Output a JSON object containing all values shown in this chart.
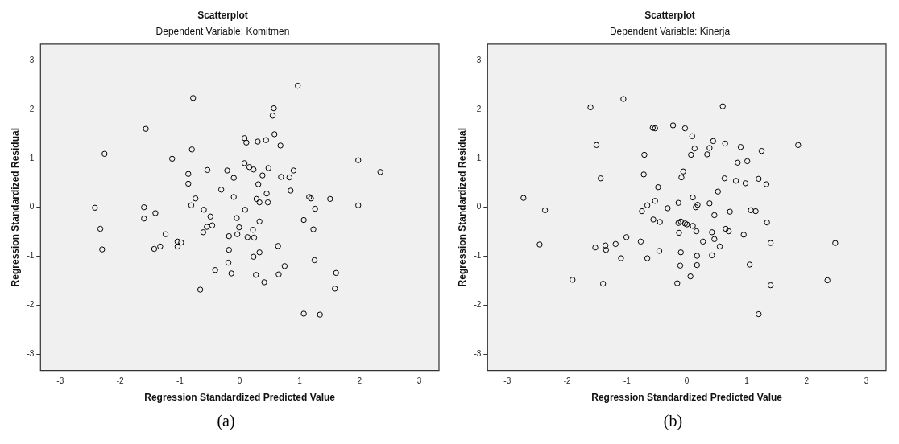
{
  "chart_data": [
    {
      "type": "scatter",
      "title": "Scatterplot",
      "subtitle": "Dependent Variable: Komitmen",
      "xlabel": "Regression Standardized Predicted Value",
      "ylabel": "Regression Standardized Residual",
      "annotations": [
        "(a)"
      ],
      "color": "#000000",
      "marker": "circle",
      "grid": false,
      "legend": false,
      "xlim": [
        -3.33,
        3.33
      ],
      "ylim": [
        -3.33,
        3.33
      ],
      "xticks": [
        -3,
        -2,
        -1,
        0,
        1,
        2,
        3
      ],
      "yticks": [
        -3,
        -2,
        -1,
        0,
        1,
        2,
        3
      ],
      "x": [
        0.97,
        -0.78,
        0.57,
        0.55,
        -1.57,
        0.58,
        0.08,
        0.11,
        0.3,
        0.44,
        0.68,
        -2.26,
        -0.8,
        -1.13,
        1.98,
        2.35,
        0.08,
        0.16,
        0.23,
        0.48,
        0.9,
        -0.54,
        -0.21,
        -0.86,
        -0.1,
        0.38,
        0.69,
        0.83,
        -0.86,
        0.31,
        -0.31,
        0.85,
        -0.74,
        -0.1,
        0.28,
        0.45,
        0.33,
        0.47,
        1.16,
        1.19,
        1.51,
        1.98,
        -2.42,
        -1.6,
        -0.81,
        0.09,
        1.26,
        -1.6,
        -1.41,
        -0.6,
        -0.49,
        -0.05,
        0.33,
        1.07,
        -2.33,
        -0.55,
        -0.46,
        -0.01,
        0.22,
        1.23,
        -1.24,
        -0.61,
        -0.04,
        -0.18,
        0.13,
        0.24,
        -1.04,
        -0.98,
        -1.04,
        -1.33,
        -1.43,
        -2.3,
        0.64,
        -0.18,
        0.33,
        0.23,
        -0.19,
        1.25,
        0.75,
        -0.41,
        -0.14,
        0.27,
        0.65,
        1.61,
        0.41,
        -0.66,
        1.59,
        1.07,
        1.34
      ],
      "values": [
        2.48,
        2.23,
        2.02,
        1.87,
        1.6,
        1.49,
        1.41,
        1.32,
        1.34,
        1.37,
        1.26,
        1.09,
        1.18,
        0.99,
        0.96,
        0.72,
        0.9,
        0.82,
        0.77,
        0.8,
        0.75,
        0.76,
        0.75,
        0.68,
        0.6,
        0.65,
        0.62,
        0.61,
        0.48,
        0.47,
        0.36,
        0.34,
        0.18,
        0.21,
        0.17,
        0.28,
        0.1,
        0.1,
        0.21,
        0.18,
        0.17,
        0.04,
        -0.01,
        0.0,
        0.04,
        -0.05,
        -0.03,
        -0.23,
        -0.12,
        -0.05,
        -0.19,
        -0.22,
        -0.29,
        -0.26,
        -0.44,
        -0.4,
        -0.37,
        -0.41,
        -0.46,
        -0.45,
        -0.55,
        -0.51,
        -0.55,
        -0.59,
        -0.61,
        -0.62,
        -0.7,
        -0.72,
        -0.8,
        -0.8,
        -0.85,
        -0.86,
        -0.79,
        -0.87,
        -0.92,
        -1.01,
        -1.13,
        -1.08,
        -1.2,
        -1.28,
        -1.35,
        -1.38,
        -1.37,
        -1.34,
        -1.53,
        -1.68,
        -1.66,
        -2.17,
        -2.19
      ]
    },
    {
      "type": "scatter",
      "title": "Scatterplot",
      "subtitle": "Dependent Variable: Kinerja",
      "xlabel": "Regression Standardized Predicted Value",
      "ylabel": "Regression Standardized Residual",
      "annotations": [
        "(b)"
      ],
      "color": "#000000",
      "marker": "circle",
      "grid": false,
      "legend": false,
      "xlim": [
        -3.33,
        3.33
      ],
      "ylim": [
        -3.33,
        3.33
      ],
      "xticks": [
        -3,
        -2,
        -1,
        0,
        1,
        2,
        3
      ],
      "yticks": [
        -3,
        -2,
        -1,
        0,
        1,
        2,
        3
      ],
      "x": [
        -1.06,
        -1.61,
        0.6,
        -0.57,
        -0.53,
        -0.23,
        -0.03,
        0.09,
        -1.51,
        1.86,
        0.44,
        0.64,
        0.9,
        1.25,
        0.13,
        0.38,
        -0.71,
        0.07,
        0.34,
        0.85,
        1.01,
        -1.44,
        -0.72,
        -0.06,
        -0.09,
        0.63,
        0.82,
        0.98,
        1.2,
        1.33,
        -0.48,
        0.52,
        -2.73,
        -2.37,
        0.1,
        -0.66,
        -0.53,
        -0.14,
        0.15,
        0.18,
        0.38,
        -0.32,
        -0.75,
        0.72,
        1.07,
        1.15,
        0.46,
        -0.56,
        -0.45,
        -0.14,
        -0.1,
        -0.03,
        0.0,
        0.1,
        0.16,
        0.65,
        0.7,
        1.34,
        -0.13,
        0.42,
        0.95,
        -1.01,
        0.46,
        0.27,
        -0.77,
        -2.46,
        1.4,
        2.48,
        -1.19,
        -1.36,
        -1.35,
        -1.53,
        0.55,
        -0.46,
        -0.1,
        -1.1,
        -0.66,
        0.17,
        0.42,
        -0.11,
        0.17,
        1.05,
        0.06,
        -1.91,
        -1.4,
        -0.16,
        1.4,
        2.35,
        1.2
      ],
      "values": [
        2.21,
        2.04,
        2.06,
        1.62,
        1.61,
        1.67,
        1.61,
        1.45,
        1.27,
        1.27,
        1.35,
        1.3,
        1.23,
        1.15,
        1.2,
        1.21,
        1.07,
        1.07,
        1.08,
        0.91,
        0.94,
        0.59,
        0.67,
        0.73,
        0.61,
        0.59,
        0.54,
        0.49,
        0.58,
        0.47,
        0.41,
        0.32,
        0.19,
        -0.06,
        0.2,
        0.04,
        0.13,
        0.09,
        0.0,
        0.05,
        0.08,
        -0.02,
        -0.08,
        -0.09,
        -0.06,
        -0.08,
        -0.16,
        -0.25,
        -0.3,
        -0.32,
        -0.29,
        -0.33,
        -0.35,
        -0.38,
        -0.49,
        -0.44,
        -0.49,
        -0.31,
        -0.52,
        -0.51,
        -0.56,
        -0.61,
        -0.65,
        -0.7,
        -0.7,
        -0.76,
        -0.73,
        -0.73,
        -0.75,
        -0.78,
        -0.87,
        -0.82,
        -0.8,
        -0.89,
        -0.92,
        -1.04,
        -1.04,
        -0.99,
        -0.98,
        -1.19,
        -1.18,
        -1.17,
        -1.41,
        -1.48,
        -1.56,
        -1.55,
        -1.59,
        -1.49,
        -2.18
      ]
    }
  ]
}
